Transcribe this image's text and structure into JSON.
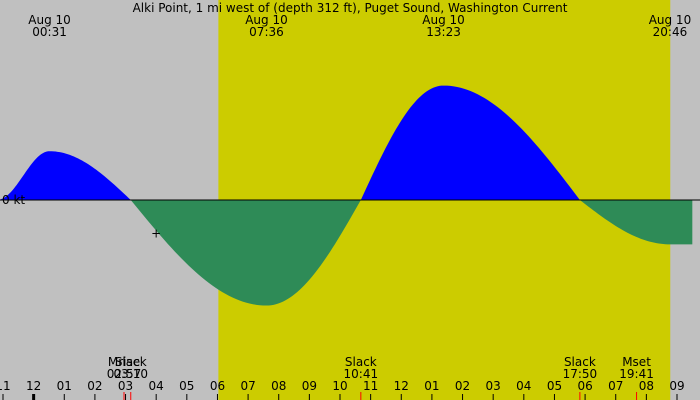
{
  "chart_data": {
    "type": "area",
    "title": "Alki Point, 1 mi west of (depth 312 ft), Puget Sound, Washington Current",
    "zero_label": "0 kt",
    "colors": {
      "background": "#c0c0c0",
      "daylight": "#cccc00",
      "flood": "#0000ff",
      "ebb": "#2e8b57",
      "axis": "#000000",
      "event_tick": "#ff0000"
    },
    "x_range_hours": [
      -1,
      21.3
    ],
    "daylight_hours": [
      6.03,
      20.78
    ],
    "y_range_kt": [
      -1.3,
      1.25
    ],
    "curve": {
      "series": [
        {
          "x": -1.2,
          "y": 0.55
        },
        {
          "x": 0.52,
          "y": 0.55
        },
        {
          "x": 3.17,
          "y": 0
        },
        {
          "x": 7.6,
          "y": -1.19
        },
        {
          "x": 10.68,
          "y": 0
        },
        {
          "x": 13.38,
          "y": 1.29
        },
        {
          "x": 17.83,
          "y": 0
        },
        {
          "x": 20.77,
          "y": -0.5
        },
        {
          "x": 21.5,
          "y": -0.5
        }
      ]
    },
    "top_labels": [
      {
        "date": "Aug 10",
        "time": "00:31",
        "hour": 0.52
      },
      {
        "date": "Aug 10",
        "time": "07:36",
        "hour": 7.6
      },
      {
        "date": "Aug 10",
        "time": "13:23",
        "hour": 13.38
      },
      {
        "date": "Aug 10",
        "time": "20:46",
        "hour": 20.77
      }
    ],
    "events": [
      {
        "name": "Mrise",
        "time": "02:57",
        "hour": 2.95
      },
      {
        "name": "Slack",
        "time": "03:10",
        "hour": 3.17
      },
      {
        "name": "Slack",
        "time": "10:41",
        "hour": 10.68
      },
      {
        "name": "Slack",
        "time": "17:50",
        "hour": 17.83
      },
      {
        "name": "Mset",
        "time": "19:41",
        "hour": 19.68
      }
    ],
    "hour_ticks": [
      {
        "label": "11",
        "hour": -1
      },
      {
        "label": "12",
        "hour": 0
      },
      {
        "label": "01",
        "hour": 1
      },
      {
        "label": "02",
        "hour": 2
      },
      {
        "label": "03",
        "hour": 3
      },
      {
        "label": "04",
        "hour": 4
      },
      {
        "label": "05",
        "hour": 5
      },
      {
        "label": "06",
        "hour": 6
      },
      {
        "label": "07",
        "hour": 7
      },
      {
        "label": "08",
        "hour": 8
      },
      {
        "label": "09",
        "hour": 9
      },
      {
        "label": "10",
        "hour": 10
      },
      {
        "label": "11",
        "hour": 11
      },
      {
        "label": "12",
        "hour": 12
      },
      {
        "label": "01",
        "hour": 13
      },
      {
        "label": "02",
        "hour": 14
      },
      {
        "label": "03",
        "hour": 15
      },
      {
        "label": "04",
        "hour": 16
      },
      {
        "label": "05",
        "hour": 17
      },
      {
        "label": "06",
        "hour": 18
      },
      {
        "label": "07",
        "hour": 19
      },
      {
        "label": "08",
        "hour": 20
      },
      {
        "label": "09",
        "hour": 21
      }
    ],
    "marker": {
      "symbol": "+",
      "hour": 4.0,
      "kt": -0.38
    }
  }
}
